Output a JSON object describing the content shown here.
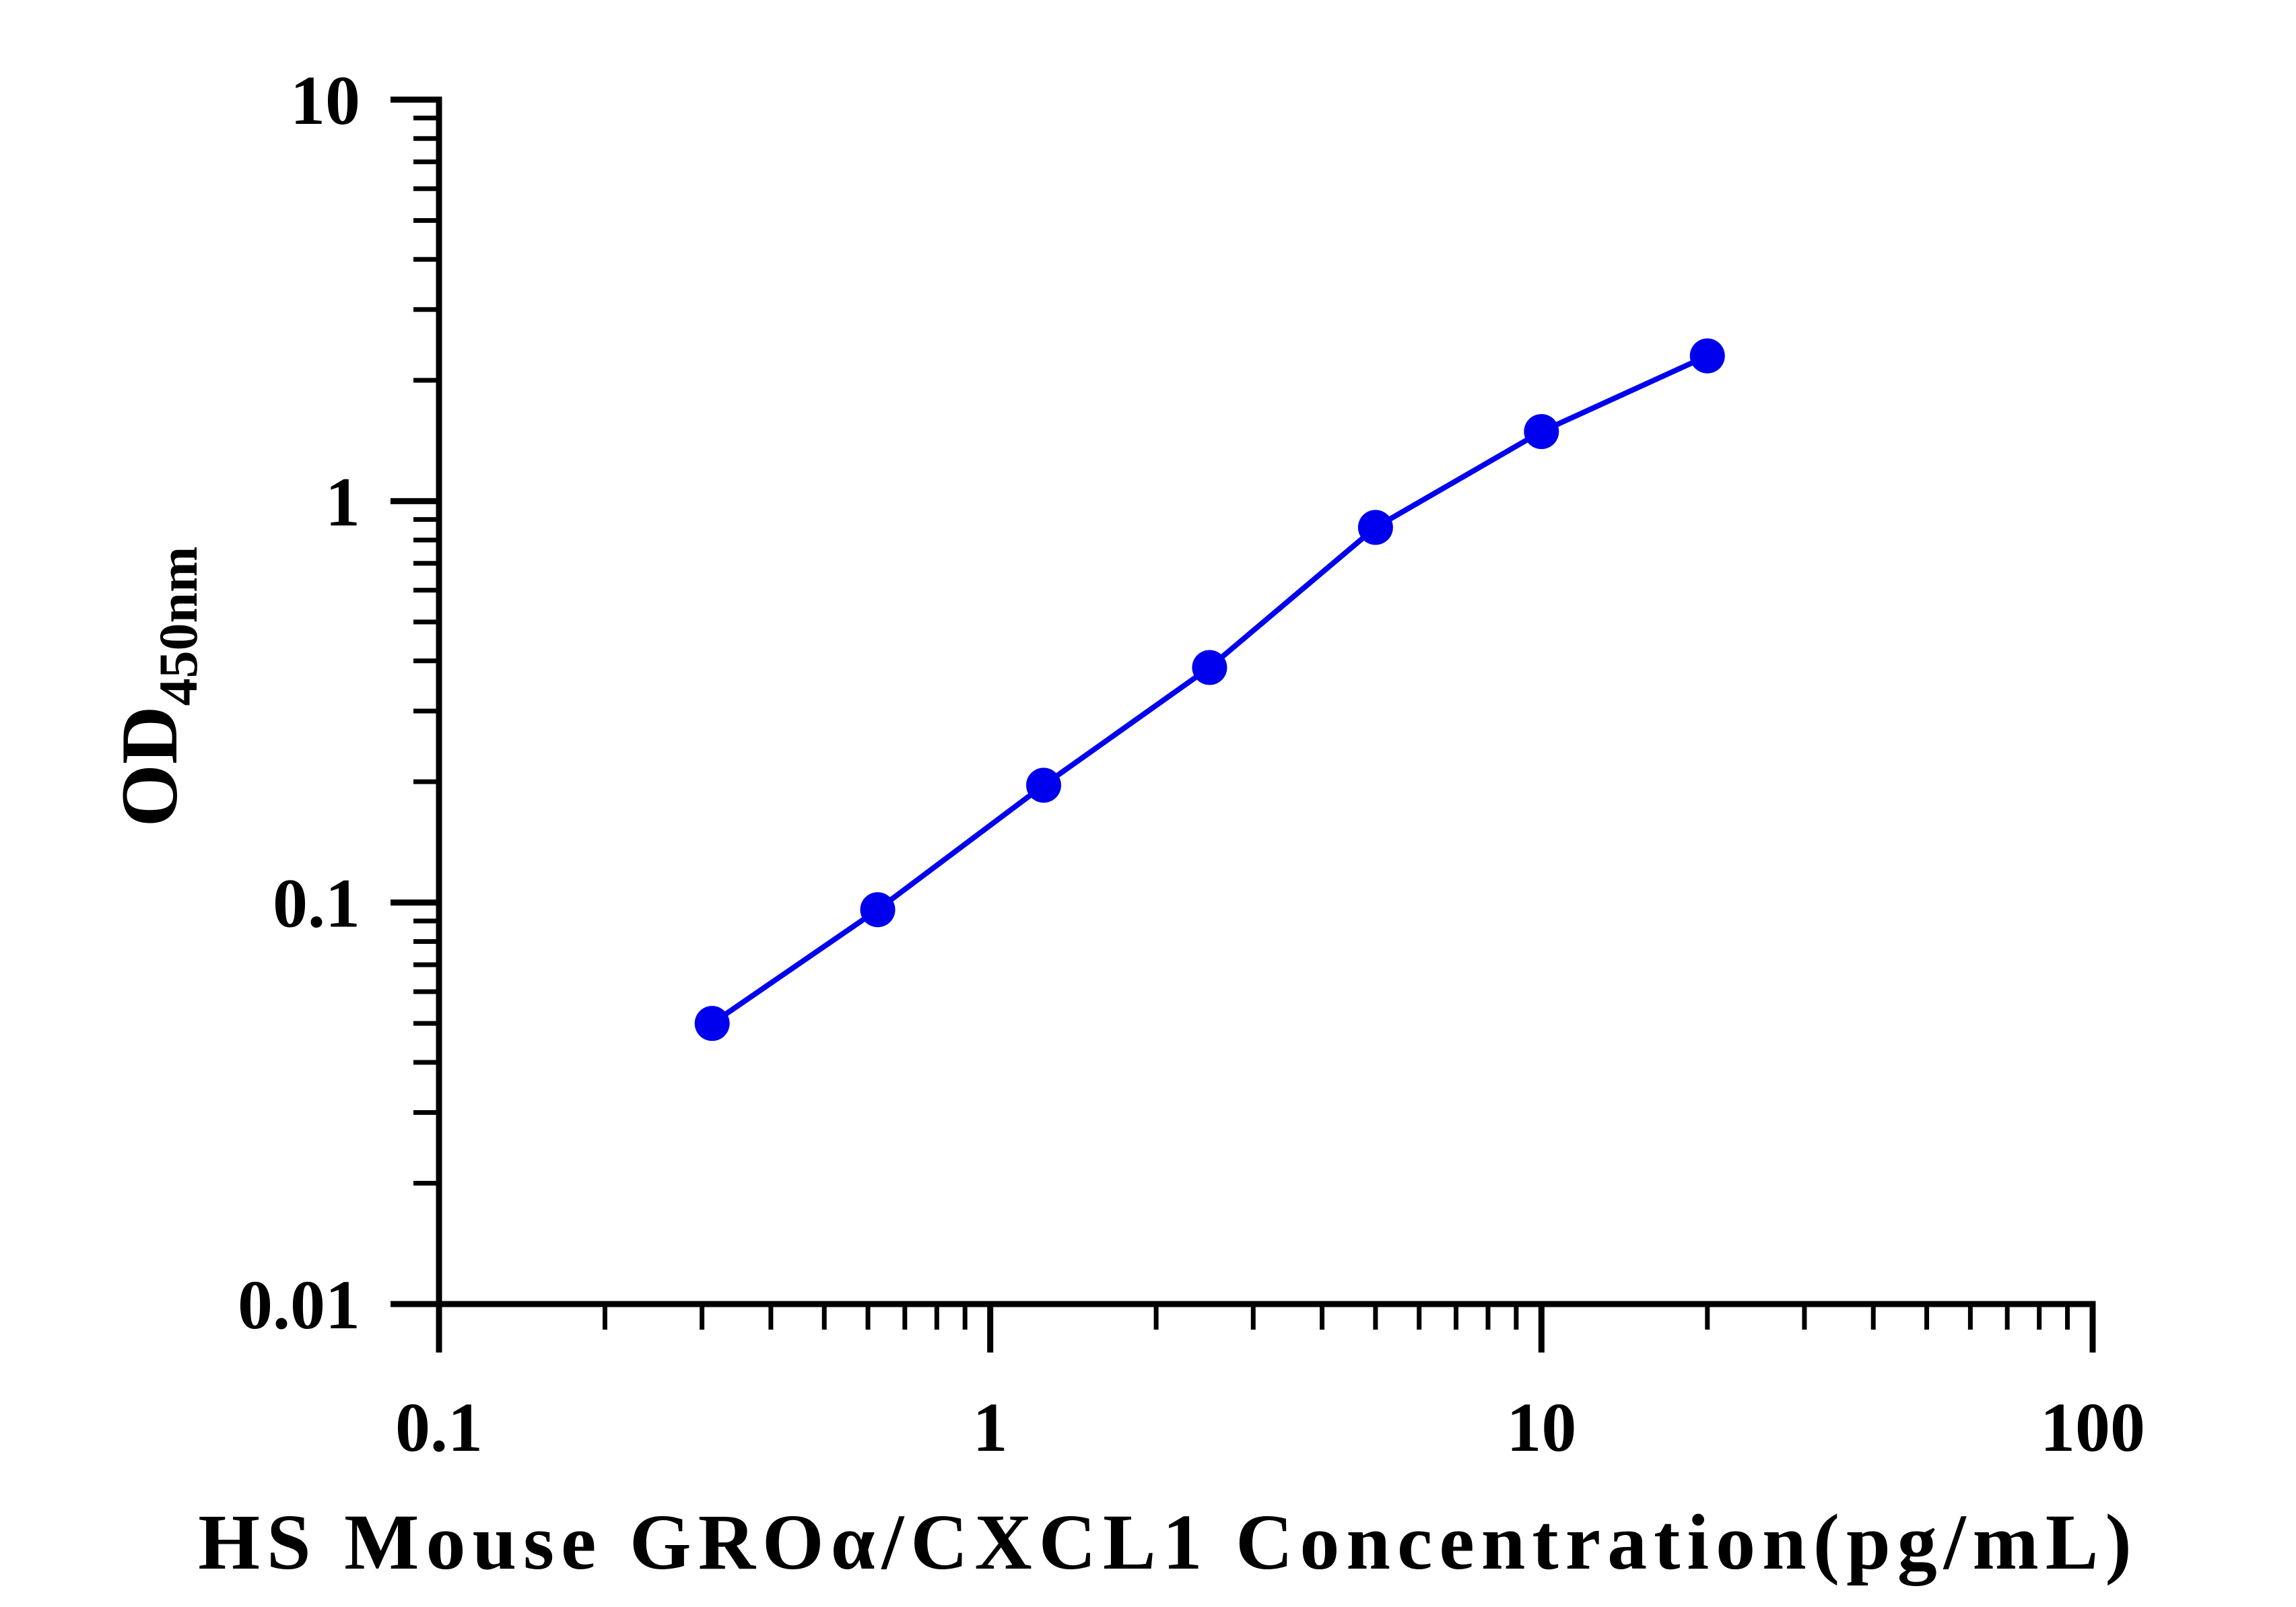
{
  "chart_data": {
    "type": "line",
    "title": "",
    "xlabel": "HS Mouse GROα/CXCL1 Concentration(pg/mL)",
    "ylabel": {
      "main": "OD",
      "sub": "450nm"
    },
    "xscale": "log",
    "yscale": "log",
    "xlim": [
      0.1,
      100
    ],
    "ylim": [
      0.01,
      10
    ],
    "xticks": [
      {
        "value": 0.1,
        "label": "0.1"
      },
      {
        "value": 1,
        "label": "1"
      },
      {
        "value": 10,
        "label": "10"
      },
      {
        "value": 100,
        "label": "100"
      }
    ],
    "yticks": [
      {
        "value": 0.01,
        "label": "0.01"
      },
      {
        "value": 0.1,
        "label": "0.1"
      },
      {
        "value": 1,
        "label": "1"
      },
      {
        "value": 10,
        "label": "10"
      }
    ],
    "grid": false,
    "legend": "none",
    "series": [
      {
        "color": "#0000ee",
        "points": [
          {
            "x": 0.313,
            "y": 0.05
          },
          {
            "x": 0.625,
            "y": 0.096
          },
          {
            "x": 1.25,
            "y": 0.196
          },
          {
            "x": 2.5,
            "y": 0.385
          },
          {
            "x": 5,
            "y": 0.86
          },
          {
            "x": 10,
            "y": 1.49
          },
          {
            "x": 20,
            "y": 2.3
          }
        ]
      }
    ]
  }
}
